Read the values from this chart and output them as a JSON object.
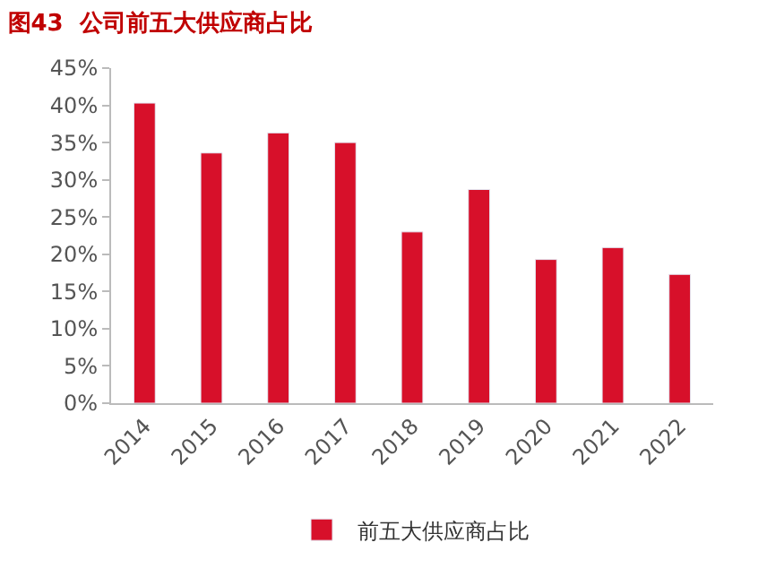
{
  "chart_data": {
    "type": "bar",
    "title": "图43  公司前五大供应商占比",
    "categories": [
      "2014",
      "2015",
      "2016",
      "2017",
      "2018",
      "2019",
      "2020",
      "2021",
      "2022"
    ],
    "series": [
      {
        "name": "前五大供应商占比",
        "color": "#d7102a",
        "values": [
          40.3,
          33.6,
          36.3,
          35.0,
          23.0,
          28.7,
          19.3,
          20.9,
          17.3
        ]
      }
    ],
    "ylim": [
      0,
      45
    ],
    "yticks": [
      {
        "value": 0,
        "label": "0%"
      },
      {
        "value": 5,
        "label": "5%"
      },
      {
        "value": 10,
        "label": "10%"
      },
      {
        "value": 15,
        "label": "15%"
      },
      {
        "value": 20,
        "label": "20%"
      },
      {
        "value": 25,
        "label": "25%"
      },
      {
        "value": 30,
        "label": "30%"
      },
      {
        "value": 35,
        "label": "35%"
      },
      {
        "value": 40,
        "label": "40%"
      },
      {
        "value": 45,
        "label": "45%"
      }
    ],
    "legend": "bottom"
  }
}
